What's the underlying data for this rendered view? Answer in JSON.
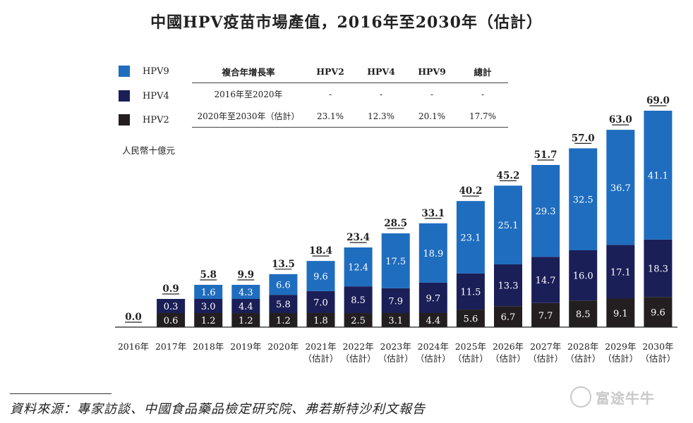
{
  "title": "中國HPV疫苗市場產值，2016年至2030年（估計）",
  "legend": [
    {
      "label": "HPV9",
      "color": "#1f6dbf"
    },
    {
      "label": "HPV4",
      "color": "#1b1f57"
    },
    {
      "label": "HPV2",
      "color": "#231f20"
    }
  ],
  "cagr_table": {
    "headers": [
      "複合年增長率",
      "HPV2",
      "HPV4",
      "HPV9",
      "總計"
    ],
    "rows": [
      [
        "2016年至2020年",
        "-",
        "-",
        "-",
        "-"
      ],
      [
        "2020年至2030年（估計）",
        "23.1%",
        "12.3%",
        "20.1%",
        "17.7%"
      ]
    ]
  },
  "unit": "人民幣十億元",
  "source": "資料來源：專家訪談、中國食品藥品檢定研究院、弗若斯特沙利文報告",
  "brand": "富途牛牛",
  "chart_data": {
    "type": "bar",
    "stacked": true,
    "categories": [
      "2016年",
      "2017年",
      "2018年",
      "2019年",
      "2020年",
      "2021年\n（估計）",
      "2022年\n（估計）",
      "2023年\n（估計）",
      "2024年\n（估計）",
      "2025年\n（估計）",
      "2026年\n（估計）",
      "2027年\n（估計）",
      "2028年\n（估計）",
      "2029年\n（估計）",
      "2030年\n（估計）"
    ],
    "series": [
      {
        "name": "HPV2",
        "values": [
          null,
          0.6,
          1.2,
          1.2,
          1.2,
          1.8,
          2.5,
          3.1,
          4.4,
          5.6,
          6.7,
          7.7,
          8.5,
          9.1,
          9.6
        ]
      },
      {
        "name": "HPV4",
        "values": [
          null,
          0.3,
          3.0,
          4.4,
          5.8,
          7.0,
          8.5,
          7.9,
          9.7,
          11.5,
          13.3,
          14.7,
          16.0,
          17.1,
          18.3
        ]
      },
      {
        "name": "HPV9",
        "values": [
          null,
          null,
          1.6,
          4.3,
          6.6,
          9.6,
          12.4,
          17.5,
          18.9,
          23.1,
          25.1,
          29.3,
          32.5,
          36.7,
          41.1
        ]
      }
    ],
    "totals": [
      0.0,
      0.9,
      5.8,
      9.9,
      13.5,
      18.4,
      23.4,
      28.5,
      33.1,
      40.2,
      45.2,
      51.7,
      57.0,
      63.0,
      69.0
    ],
    "ylabel": "人民幣十億元",
    "ylim": [
      0,
      69.0
    ],
    "grid": false,
    "legend_position": "top-left"
  }
}
